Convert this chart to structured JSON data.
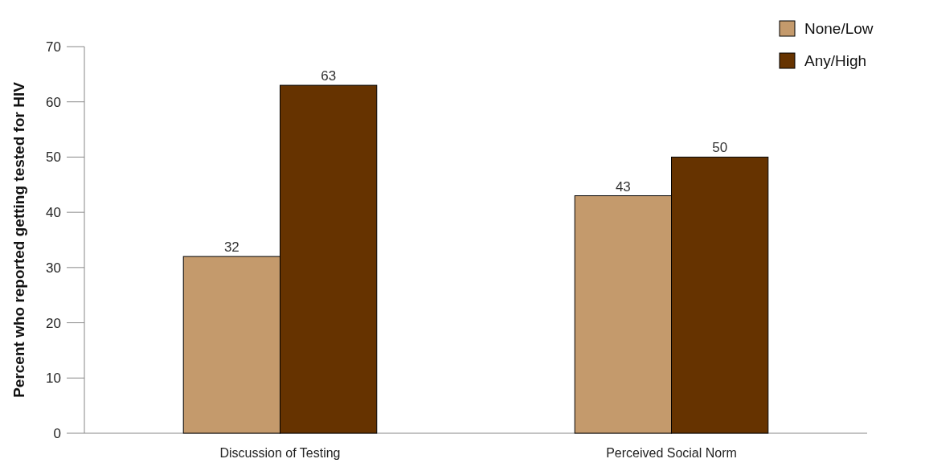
{
  "chart_data": {
    "type": "bar",
    "ylabel": "Percent who reported getting tested for HIV",
    "categories": [
      "Discussion of Testing",
      "Perceived Social Norm"
    ],
    "series": [
      {
        "name": "None/Low",
        "color": "#c49a6c",
        "values": [
          32,
          43
        ]
      },
      {
        "name": "Any/High",
        "color": "#663300",
        "values": [
          63,
          50
        ]
      }
    ],
    "ylim": [
      0,
      70
    ],
    "yticks": [
      0,
      10,
      20,
      30,
      40,
      50,
      60,
      70
    ],
    "grid": false,
    "legend": "top right",
    "data_labels": true
  }
}
